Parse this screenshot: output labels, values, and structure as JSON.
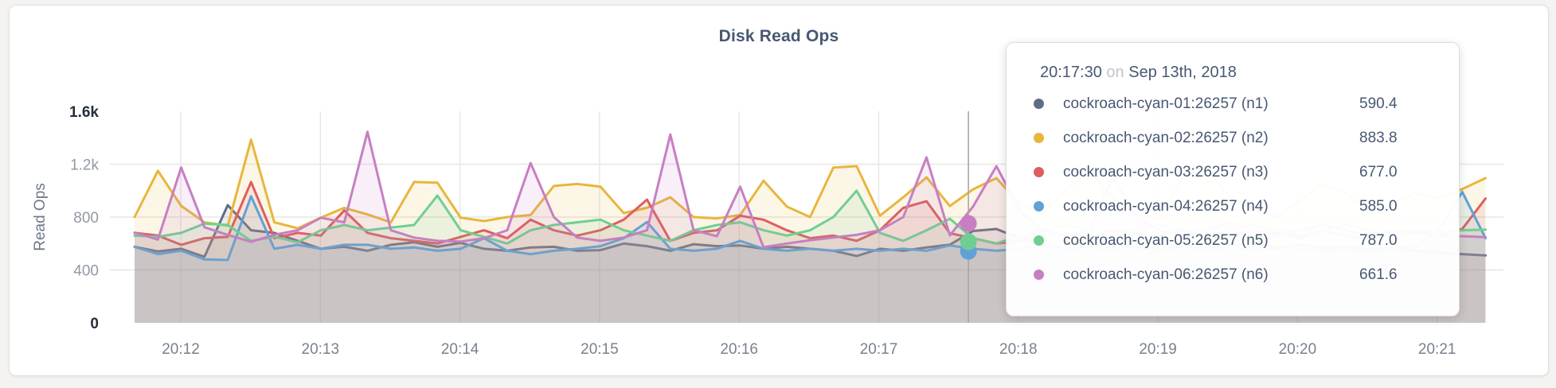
{
  "page": {
    "background": "#f4f3f1"
  },
  "card": {
    "background": "#ffffff",
    "border_color": "#e3e1de"
  },
  "chart": {
    "title": "Disk Read Ops",
    "title_color": "#475872",
    "grid_color": "#e7e6e4",
    "crosshair_color": "#a8a8a8",
    "y_axis": {
      "label": "Read Ops",
      "label_color": "#6e7888",
      "tick_color": "#9199a6",
      "tick_color_extreme": "#252e3e",
      "ticks": [
        {
          "value": 0,
          "label": "0",
          "emph": true
        },
        {
          "value": 400,
          "label": "400",
          "emph": false
        },
        {
          "value": 800,
          "label": "800",
          "emph": false
        },
        {
          "value": 1200,
          "label": "1.2k",
          "emph": false
        },
        {
          "value": 1600,
          "label": "1.6k",
          "emph": true
        }
      ]
    },
    "x_axis": {
      "tick_color": "#78818f",
      "ticks": [
        "20:12",
        "20:13",
        "20:14",
        "20:15",
        "20:16",
        "20:17",
        "20:18",
        "20:19",
        "20:20",
        "20:21"
      ]
    }
  },
  "chart_data": {
    "type": "area",
    "title": "Disk Read Ops",
    "ylabel": "Read Ops",
    "ylim": [
      0,
      1600
    ],
    "x_start": "20:11:40",
    "x_interval_seconds": 10,
    "x_tick_labels": [
      "20:12",
      "20:13",
      "20:14",
      "20:15",
      "20:16",
      "20:17",
      "20:18",
      "20:19",
      "20:20",
      "20:21"
    ],
    "legend_position": "tooltip-only",
    "grid": true,
    "series": [
      {
        "name": "cockroach-cyan-01:26257 (n1)",
        "short": "n1",
        "color": "#5F6C87",
        "values": [
          575,
          540,
          560,
          500,
          890,
          700,
          680,
          620,
          560,
          575,
          545,
          590,
          610,
          575,
          605,
          560,
          545,
          570,
          575,
          545,
          550,
          600,
          580,
          545,
          595,
          580,
          585,
          560,
          575,
          560,
          545,
          505,
          560,
          545,
          570,
          590.4,
          695,
          710,
          640,
          600,
          560,
          580,
          600,
          570,
          555,
          585,
          560,
          600,
          575,
          560,
          590,
          565,
          580,
          555,
          570,
          545,
          530,
          520,
          510
        ]
      },
      {
        "name": "cockroach-cyan-02:26257 (n2)",
        "short": "n2",
        "color": "#E8B63C",
        "values": [
          800,
          1150,
          885,
          760,
          735,
          1385,
          760,
          715,
          795,
          870,
          820,
          760,
          1065,
          1060,
          795,
          770,
          800,
          815,
          1035,
          1050,
          1030,
          830,
          870,
          950,
          800,
          790,
          815,
          1075,
          880,
          800,
          1175,
          1185,
          810,
          950,
          1100,
          883.8,
          1010,
          1095,
          900,
          820,
          1000,
          1150,
          950,
          820,
          780,
          1100,
          1180,
          950,
          860,
          800,
          920,
          1050,
          980,
          840,
          900,
          980,
          940,
          1012,
          1095
        ]
      },
      {
        "name": "cockroach-cyan-03:26257 (n3)",
        "short": "n3",
        "color": "#DC5F5F",
        "values": [
          680,
          660,
          590,
          640,
          650,
          1065,
          640,
          680,
          660,
          850,
          680,
          640,
          620,
          600,
          650,
          700,
          640,
          780,
          700,
          660,
          700,
          780,
          932,
          620,
          680,
          700,
          810,
          780,
          700,
          640,
          660,
          620,
          700,
          870,
          920,
          677,
          640,
          600,
          620,
          700,
          660,
          640,
          700,
          680,
          660,
          700,
          640,
          660,
          700,
          680,
          640,
          700,
          660,
          640,
          680,
          700,
          660,
          710,
          940
        ]
      },
      {
        "name": "cockroach-cyan-04:26257 (n4)",
        "short": "n4",
        "color": "#60A1D6",
        "values": [
          575,
          520,
          545,
          480,
          475,
          957,
          560,
          590,
          560,
          590,
          590,
          560,
          570,
          545,
          560,
          640,
          545,
          520,
          545,
          560,
          580,
          640,
          763,
          560,
          545,
          560,
          620,
          560,
          545,
          560,
          545,
          560,
          545,
          560,
          545,
          585,
          560,
          545,
          560,
          580,
          560,
          545,
          560,
          580,
          560,
          545,
          560,
          545,
          560,
          580,
          560,
          545,
          560,
          545,
          560,
          580,
          700,
          990,
          640
        ]
      },
      {
        "name": "cockroach-cyan-05:26257 (n5)",
        "short": "n5",
        "color": "#71CE92",
        "values": [
          660,
          650,
          680,
          750,
          740,
          620,
          650,
          610,
          700,
          740,
          700,
          720,
          740,
          963,
          700,
          650,
          600,
          700,
          740,
          760,
          780,
          700,
          660,
          620,
          700,
          740,
          760,
          700,
          660,
          700,
          800,
          1000,
          680,
          620,
          700,
          787,
          640,
          600,
          660,
          700,
          740,
          700,
          660,
          700,
          740,
          700,
          660,
          700,
          740,
          700,
          660,
          700,
          740,
          700,
          660,
          700,
          690,
          700,
          705
        ]
      },
      {
        "name": "cockroach-cyan-06:26257 (n6)",
        "short": "n6",
        "color": "#C77FC2",
        "values": [
          683,
          630,
          1175,
          723,
          665,
          613,
          665,
          700,
          795,
          760,
          1445,
          700,
          645,
          620,
          615,
          640,
          700,
          1209,
          800,
          645,
          620,
          645,
          700,
          1425,
          700,
          655,
          1030,
          572,
          600,
          625,
          645,
          665,
          700,
          800,
          1252,
          661.6,
          880,
          1185,
          850,
          700,
          660,
          700,
          1100,
          800,
          700,
          660,
          700,
          760,
          700,
          660,
          700,
          740,
          700,
          660,
          700,
          680,
          660,
          655,
          648
        ]
      }
    ],
    "crosshair": {
      "x_index": 35.8,
      "snapped_time": "20:17:30",
      "dots": [
        {
          "series": "cockroach-cyan-04:26257 (n4)",
          "color": "#60A1D6",
          "value": 541
        },
        {
          "series": "cockroach-cyan-05:26257 (n5)",
          "color": "#71CE92",
          "value": 613
        },
        {
          "series": "cockroach-cyan-06:26257 (n6)",
          "color": "#C77FC2",
          "value": 752
        }
      ]
    }
  },
  "tooltip": {
    "time": "20:17:30",
    "conj": "on",
    "date": "Sep 13th, 2018",
    "rows": [
      {
        "name": "cockroach-cyan-01:26257 (n1)",
        "value": "590.4",
        "color": "#5F6C87"
      },
      {
        "name": "cockroach-cyan-02:26257 (n2)",
        "value": "883.8",
        "color": "#E8B63C"
      },
      {
        "name": "cockroach-cyan-03:26257 (n3)",
        "value": "677.0",
        "color": "#DC5F5F"
      },
      {
        "name": "cockroach-cyan-04:26257 (n4)",
        "value": "585.0",
        "color": "#60A1D6"
      },
      {
        "name": "cockroach-cyan-05:26257 (n5)",
        "value": "787.0",
        "color": "#71CE92"
      },
      {
        "name": "cockroach-cyan-06:26257 (n6)",
        "value": "661.6",
        "color": "#C77FC2"
      }
    ]
  }
}
